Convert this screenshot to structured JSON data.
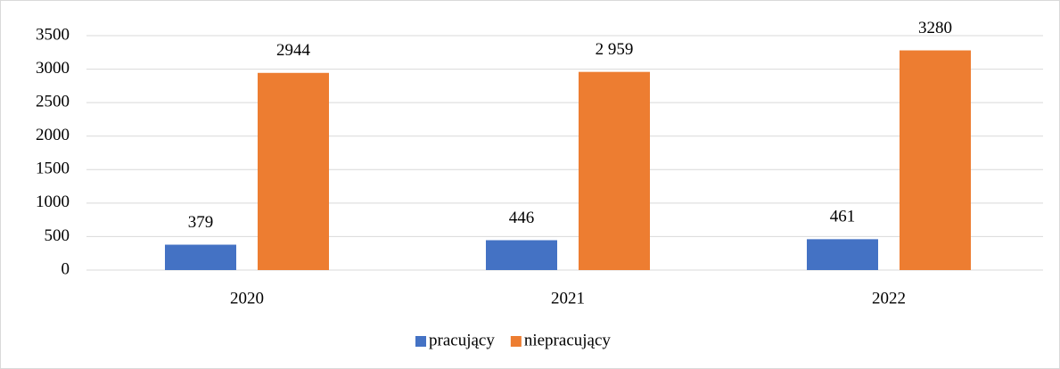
{
  "chart_data": {
    "type": "bar",
    "categories": [
      "2020",
      "2021",
      "2022"
    ],
    "series": [
      {
        "name": "pracujący",
        "color": "#4472c4",
        "values": [
          379,
          446,
          461
        ],
        "value_labels": [
          "379",
          "446",
          "461"
        ]
      },
      {
        "name": "niepracujący",
        "color": "#ed7d31",
        "values": [
          2944,
          2959,
          3280
        ],
        "value_labels": [
          "2944",
          "2 959",
          "3280"
        ]
      }
    ],
    "ylim": [
      0,
      3500
    ],
    "yticks": [
      0,
      500,
      1000,
      1500,
      2000,
      2500,
      3000,
      3500
    ],
    "grid": true,
    "legend": "bottom"
  }
}
